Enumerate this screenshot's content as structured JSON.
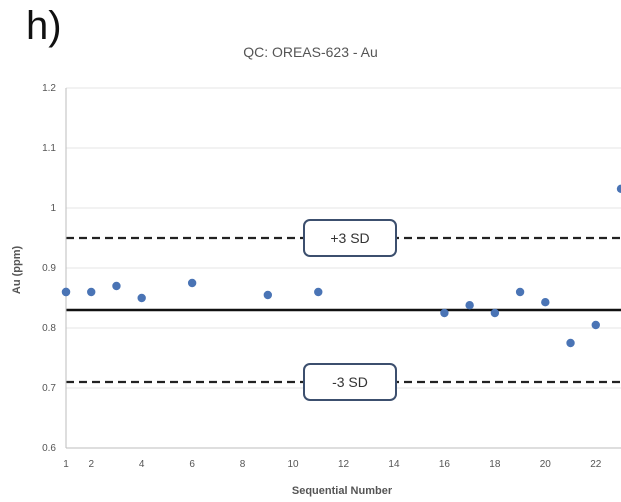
{
  "panel_label": "h)",
  "chart_data": {
    "type": "scatter",
    "title": "QC: OREAS-623 - Au",
    "xlabel": "Sequential Number",
    "ylabel": "Au (ppm)",
    "xlim": [
      1,
      23
    ],
    "ylim": [
      0.6,
      1.2
    ],
    "x_ticks": [
      1,
      2,
      4,
      6,
      8,
      10,
      12,
      14,
      16,
      18,
      20,
      22
    ],
    "y_ticks": [
      0.6,
      0.7,
      0.8,
      0.9,
      1,
      1.1,
      1.2
    ],
    "y_tick_labels": [
      "0.6",
      "0.7",
      "0.8",
      "0.9",
      "1",
      "1.1",
      "1.2"
    ],
    "grid": "horizontal",
    "point_color": "#4a74b5",
    "x": [
      1,
      1,
      2,
      3,
      4,
      6,
      9,
      11,
      16,
      17,
      18,
      19,
      20,
      21,
      22,
      23
    ],
    "y": [
      0.86,
      0.86,
      0.86,
      0.87,
      0.85,
      0.875,
      0.855,
      0.86,
      0.825,
      0.838,
      0.825,
      0.86,
      0.843,
      0.775,
      0.805,
      1.032
    ],
    "x_offsets_note_removed": null,
    "reference_lines": [
      {
        "value": 0.95,
        "style": "dashed",
        "label": "+3 SD"
      },
      {
        "value": 0.83,
        "style": "solid",
        "label": ""
      },
      {
        "value": 0.71,
        "style": "dashed",
        "label": "-3 SD"
      }
    ]
  }
}
